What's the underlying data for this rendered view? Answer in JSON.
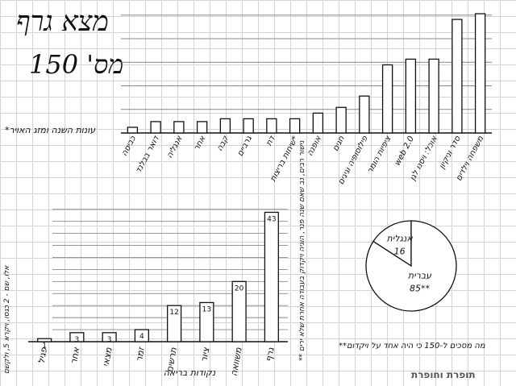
{
  "title": "מצא גרף",
  "subtitle": "מס' 150",
  "top_note": "*עונות השנה ומזג האויר",
  "left_note": "אלו, שם - 2 כגסו, ויקרא 5, ולקשם",
  "middle_note": "** נישור רבים, נב שאם שנה פנר, הוגיה ויקדוק בעבודה אחרת שלא ירים",
  "bottom_note": "**מה מסכים ל-150 כי היה אחד על ויקדום",
  "logo_text": "תופרת וחופרת",
  "colors": {
    "ink": "#111111",
    "grid": "#d4d4d4",
    "bar_fill": "#ffffff"
  },
  "chart_data": [
    {
      "type": "bar",
      "title": "",
      "xlabel": "",
      "ylabel": "",
      "categories": [
        "משפחה וילדים",
        "סדר וניקיון",
        "אוכל: ויסנו לגן",
        "web 2.0",
        "ציפיות הומר",
        "פילוסופיה וגיגים",
        "חגים",
        "אופנה",
        "שיחות בריצות*",
        "דת",
        "גרביים",
        "קבה",
        "אחר",
        "אנגליה",
        "דואר בבלנד",
        "כביסה"
      ],
      "values": [
        21,
        20,
        13,
        13,
        12,
        6.5,
        4.5,
        3.5,
        2.5,
        2.5,
        2.5,
        2.5,
        2,
        2,
        2,
        1
      ],
      "ylim": [
        0,
        22
      ],
      "grid": true
    },
    {
      "type": "bar",
      "title": "",
      "xlabel": "נקודות בריאה",
      "ylabel": "",
      "categories": [
        "גרף",
        "משוואה",
        "ציור",
        "תרשים",
        "זמר",
        "מצאי",
        "אחר",
        "פגיל"
      ],
      "values": [
        43,
        20,
        13,
        12,
        4,
        3,
        3,
        1
      ],
      "data_labels": [
        "43",
        "20",
        "13",
        "12",
        "4",
        "3",
        "3",
        "1"
      ],
      "ylim": [
        0,
        45
      ],
      "grid": true
    },
    {
      "type": "pie",
      "labels": [
        "עברית",
        "אנגלית"
      ],
      "values": [
        85,
        16
      ],
      "data_labels": [
        "85**",
        "16"
      ]
    }
  ]
}
